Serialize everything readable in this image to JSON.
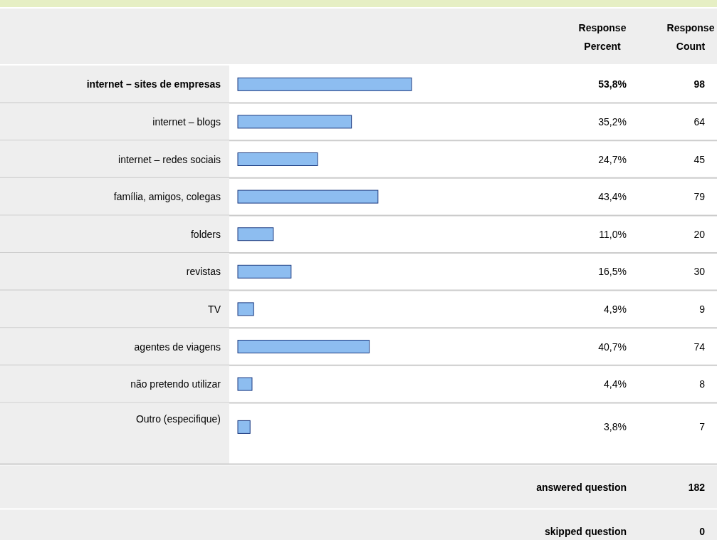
{
  "chart_data": {
    "type": "bar",
    "orientation": "horizontal",
    "color": "#8dbdf0",
    "tick_labels": "y",
    "categories": [
      "internet – sites de empresas",
      "internet – blogs",
      "internet – redes sociais",
      "família, amigos, colegas",
      "folders",
      "revistas",
      "TV",
      "agentes de viagens",
      "não pretendo utilizar",
      "Outro (especifique)"
    ],
    "values": [
      53.8,
      35.2,
      24.7,
      43.4,
      11.0,
      16.5,
      4.9,
      40.7,
      4.4,
      3.8
    ],
    "value_labels": [
      "53,8%",
      "35,2%",
      "24,7%",
      "43,4%",
      "11,0%",
      "16,5%",
      "4,9%",
      "40,7%",
      "4,4%",
      "3,8%"
    ],
    "annotations": [
      "Response Percent",
      "Response Count",
      "98",
      "64",
      "45",
      "79",
      "20",
      "30",
      "9",
      "74",
      "8",
      "7",
      "answered question",
      "182",
      "skipped question",
      "0"
    ]
  }
}
